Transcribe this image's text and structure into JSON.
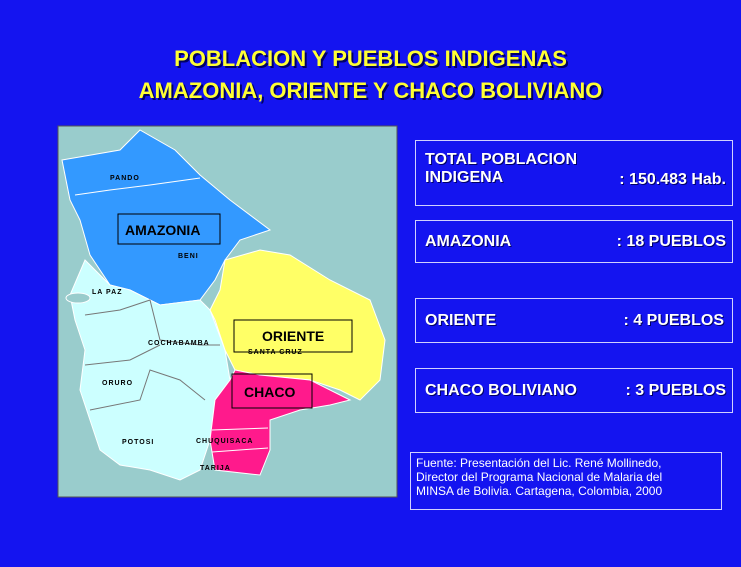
{
  "title": {
    "line1": "POBLACION  Y PUEBLOS  INDIGENAS",
    "line2": "AMAZONIA, ORIENTE Y CHACO BOLIVIANO"
  },
  "map": {
    "departments": [
      "PANDO",
      "BENI",
      "LA PAZ",
      "COCHABAMBA",
      "SANTA CRUZ",
      "ORURO",
      "POTOSI",
      "CHUQUISACA",
      "TARIJA"
    ],
    "regions": [
      "AMAZONIA",
      "ORIENTE",
      "CHACO"
    ]
  },
  "stats": [
    {
      "label": "TOTAL POBLACION INDIGENA",
      "value": ": 150.483 Hab."
    },
    {
      "label": "AMAZONIA",
      "value": ": 18 PUEBLOS"
    },
    {
      "label": "ORIENTE",
      "value": ": 4 PUEBLOS"
    },
    {
      "label": "CHACO BOLIVIANO",
      "value": ": 3 PUEBLOS"
    }
  ],
  "source": [
    "Fuente: Presentación del Lic. René Mollinedo,",
    "Director del Programa Nacional de Malaria del",
    "MINSA de Bolivia. Cartagena, Colombia, 2000"
  ]
}
